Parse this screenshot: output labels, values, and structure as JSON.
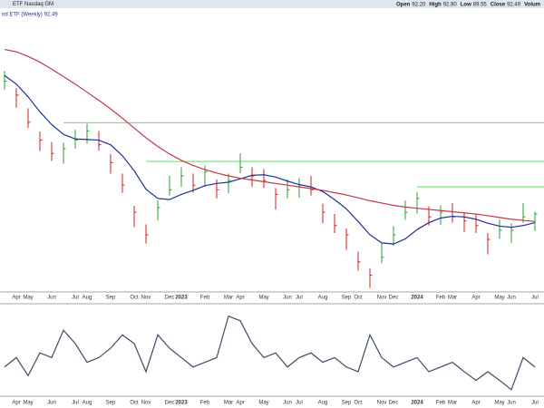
{
  "header": {
    "exchange": "ETF Nasdaq GM",
    "legend": "nd ETF (Weekly) 92.49",
    "quote": [
      {
        "label": "Open",
        "value": "92.20"
      },
      {
        "label": "High",
        "value": "92.90"
      },
      {
        "label": "Low",
        "value": "89.55"
      },
      {
        "label": "Close",
        "value": "92.49"
      },
      {
        "label": "Volum"
      }
    ]
  },
  "chart_data": {
    "type": "ohlc",
    "categories": [
      null,
      "Apr",
      "May",
      null,
      "Jun",
      null,
      "Jul",
      "Aug",
      null,
      "Sep",
      null,
      "Oct",
      "Nov",
      null,
      "Dec",
      "2023",
      null,
      "Feb",
      null,
      "Mar",
      "Apr",
      null,
      "May",
      null,
      "Jun",
      "Jul",
      null,
      "Aug",
      null,
      "Sep",
      "Oct",
      null,
      "Nov",
      "Dec",
      null,
      "2024",
      null,
      "Feb",
      "Mar",
      null,
      "Apr",
      null,
      "May",
      "Jun",
      null,
      "Jul"
    ],
    "close": [
      115.5,
      113.1,
      108.4,
      105.3,
      103.0,
      103.8,
      105.3,
      106.9,
      104.5,
      101.4,
      97.5,
      92.8,
      88.9,
      93.6,
      96.7,
      99.1,
      97.5,
      99.8,
      96.7,
      98.3,
      100.6,
      99.1,
      98.3,
      95.9,
      96.7,
      97.5,
      96.7,
      92.8,
      90.5,
      88.9,
      84.2,
      81.9,
      85.0,
      88.9,
      92.8,
      95.2,
      92.0,
      92.8,
      92.0,
      91.3,
      90.5,
      88.1,
      89.7,
      89.7,
      92.0,
      92.49
    ],
    "high": [
      117.3,
      114.3,
      110.8,
      106.8,
      105.0,
      104.9,
      107.1,
      108.1,
      106.9,
      102.9,
      99.5,
      93.9,
      90.7,
      94.8,
      99.1,
      100.6,
      99.5,
      100.9,
      98.5,
      99.5,
      103.0,
      100.6,
      100.3,
      97.0,
      98.5,
      98.7,
      99.1,
      94.3,
      92.5,
      90.0,
      86.0,
      83.1,
      87.4,
      90.4,
      94.8,
      96.3,
      93.8,
      94.0,
      94.4,
      92.8,
      92.5,
      89.2,
      91.5,
      90.9,
      94.4,
      92.9
    ],
    "low": [
      114.0,
      110.9,
      107.4,
      103.4,
      101.7,
      101.2,
      103.8,
      104.7,
      103.5,
      99.5,
      96.2,
      90.2,
      87.4,
      91.4,
      95.7,
      97.2,
      96.2,
      97.2,
      95.2,
      96.1,
      99.6,
      97.2,
      97.0,
      93.3,
      95.2,
      95.3,
      95.7,
      90.9,
      89.2,
      86.3,
      82.7,
      79.7,
      84.0,
      87.0,
      91.5,
      92.6,
      90.5,
      90.6,
      91.0,
      89.4,
      89.2,
      85.5,
      88.2,
      87.5,
      91.0,
      89.55
    ],
    "up_color": "#2a9d2a",
    "down_color": "#d01c1c",
    "series": [
      {
        "color": "#1f2f9a",
        "values": [
          116.5,
          115.0,
          112.8,
          110.2,
          108.0,
          106.3,
          105.5,
          105.4,
          105.3,
          104.5,
          102.6,
          100.0,
          96.8,
          95.2,
          95.0,
          95.9,
          96.6,
          97.4,
          97.8,
          98.0,
          98.6,
          99.2,
          99.3,
          98.9,
          98.2,
          97.6,
          97.2,
          96.4,
          95.0,
          93.4,
          91.2,
          88.9,
          87.5,
          87.3,
          88.2,
          89.8,
          91.0,
          91.8,
          92.1,
          92.0,
          91.6,
          90.9,
          90.4,
          90.2,
          90.5,
          91.0
        ]
      },
      {
        "color": "#c8364a",
        "values": [
          121.0,
          120.6,
          119.8,
          118.8,
          117.6,
          116.3,
          115.0,
          113.6,
          112.2,
          110.7,
          109.1,
          107.4,
          105.7,
          104.2,
          102.9,
          101.8,
          100.9,
          100.2,
          99.6,
          99.1,
          98.7,
          98.4,
          98.1,
          97.8,
          97.5,
          97.2,
          96.9,
          96.6,
          96.2,
          95.8,
          95.3,
          94.8,
          94.4,
          94.0,
          93.7,
          93.5,
          93.3,
          93.1,
          92.9,
          92.7,
          92.5,
          92.2,
          91.9,
          91.6,
          91.4,
          91.2
        ]
      }
    ],
    "levels": [
      {
        "value": 108.3,
        "start": 5
      },
      {
        "value": 101.6,
        "start": 12
      },
      {
        "value": 97.2,
        "start": 35
      }
    ],
    "level_color": "#7ee37e",
    "ylim": [
      79,
      128
    ],
    "indicator": {
      "color": "#3b4b66",
      "values": [
        35,
        47,
        24,
        53,
        47,
        82,
        65,
        41,
        47,
        59,
        76,
        65,
        29,
        76,
        59,
        47,
        35,
        41,
        47,
        100,
        94,
        65,
        47,
        53,
        35,
        47,
        53,
        41,
        47,
        35,
        29,
        76,
        47,
        35,
        41,
        47,
        29,
        35,
        41,
        29,
        18,
        29,
        18,
        6,
        47,
        35
      ],
      "ylim": [
        0,
        110
      ]
    }
  }
}
